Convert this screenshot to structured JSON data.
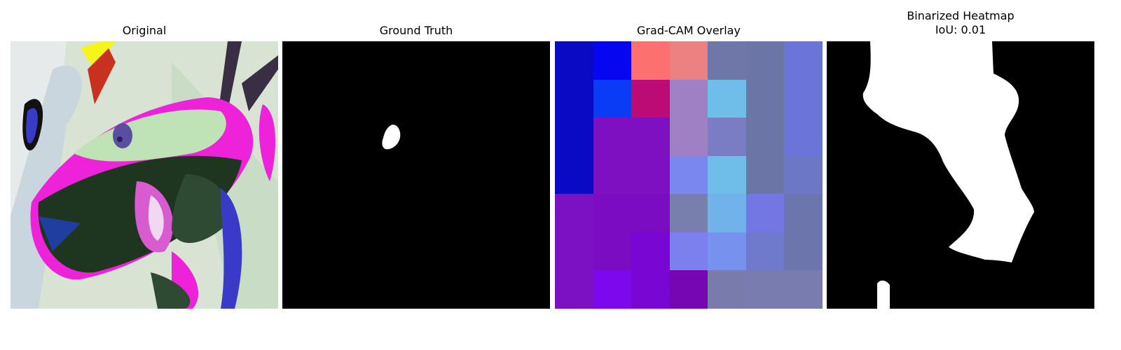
{
  "panels": {
    "original": {
      "title": "Original"
    },
    "ground_truth": {
      "title": "Ground Truth"
    },
    "gradcam": {
      "title": "Grad-CAM Overlay"
    },
    "binarized": {
      "title": "Binarized Heatmap",
      "subtitle": "IoU: 0.01"
    }
  },
  "gradcam_grid": {
    "rows": 7,
    "cols": 7,
    "colors": [
      [
        "#0a0ac4",
        "#0606f0",
        "#fc7070",
        "#ed8080",
        "#6f77a8",
        "#6b76a7",
        "#6b74d8"
      ],
      [
        "#0a0ac4",
        "#0a3cf5",
        "#bd0b75",
        "#9f80c4",
        "#6fbde9",
        "#6b76a7",
        "#6b74d8"
      ],
      [
        "#0a0ac4",
        "#7f10c2",
        "#7f10c2",
        "#9f80c4",
        "#7a7dc4",
        "#6b76a7",
        "#6b74d8"
      ],
      [
        "#0a0ac4",
        "#7f10c2",
        "#7f10c2",
        "#7987ee",
        "#6fbde9",
        "#6b76a7",
        "#6c78c5"
      ],
      [
        "#7c11c4",
        "#7c0cc2",
        "#7c0cc2",
        "#787fac",
        "#71b2ea",
        "#7277e4",
        "#6c76ac"
      ],
      [
        "#7c11c4",
        "#7c0cc2",
        "#7a06d4",
        "#7b80ee",
        "#7791ef",
        "#6f7acc",
        "#6c76ac"
      ],
      [
        "#7c11c4",
        "#7d08ee",
        "#7a06d4",
        "#7606b4",
        "#7a7bad",
        "#797caf",
        "#797caf"
      ]
    ]
  }
}
